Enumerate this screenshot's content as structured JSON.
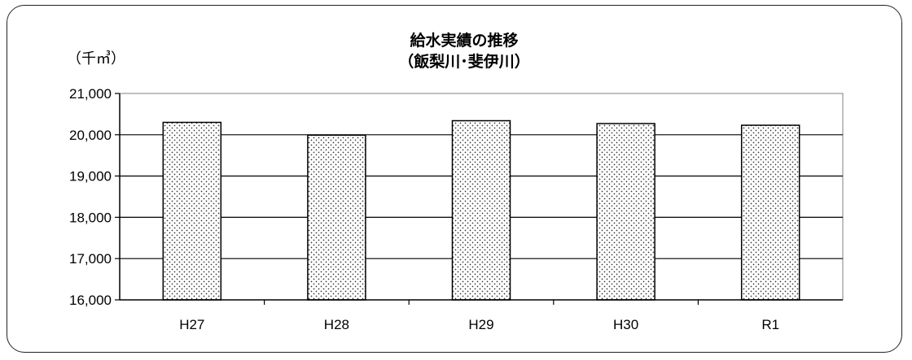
{
  "chart_data": {
    "type": "bar",
    "title": "給水実績の推移",
    "subtitle": "（飯梨川･斐伊川）",
    "ylabel": "（千㎥）",
    "xlabel": "",
    "categories": [
      "H27",
      "H28",
      "H29",
      "H30",
      "R1"
    ],
    "values": [
      20300,
      19990,
      20340,
      20270,
      20230
    ],
    "ylim": [
      16000,
      21000
    ],
    "yticks": [
      16000,
      17000,
      18000,
      19000,
      20000,
      21000
    ],
    "ytick_labels": [
      "16,000",
      "17,000",
      "18,000",
      "19,000",
      "20,000",
      "21,000"
    ],
    "grid": true,
    "legend": "none",
    "bar_fill": "dotted",
    "colors": {
      "bar_fill": "#ffffff",
      "dots": "#333333",
      "axis": "#000000"
    }
  }
}
